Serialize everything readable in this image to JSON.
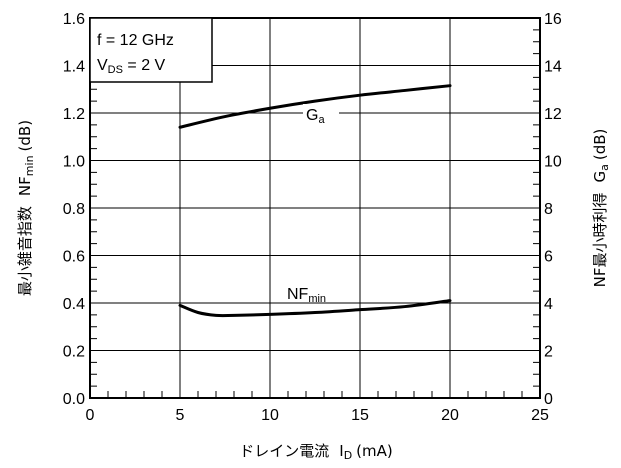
{
  "chart_data": {
    "type": "line",
    "x": {
      "label": "ドレイン電流",
      "symbol": "I",
      "symbol_sub": "D",
      "unit": "(mA)",
      "lim": [
        0,
        25
      ],
      "ticks": [
        "0",
        "5",
        "10",
        "15",
        "20",
        "25"
      ]
    },
    "y_left": {
      "label": "最小雑音指数",
      "symbol": "NF",
      "symbol_sub": "min",
      "unit": "(dB)",
      "lim": [
        0.0,
        1.6
      ],
      "ticks": [
        "0.0",
        "0.2",
        "0.4",
        "0.6",
        "0.8",
        "1.0",
        "1.2",
        "1.4",
        "1.6"
      ]
    },
    "y_right": {
      "label": "NF最小時利得",
      "symbol": "G",
      "symbol_sub": "a",
      "unit": "(dB)",
      "lim": [
        0,
        16
      ],
      "ticks": [
        "0",
        "2",
        "4",
        "6",
        "8",
        "10",
        "12",
        "14",
        "16"
      ]
    },
    "conditions": {
      "freq": "f = 12 GHz",
      "vds_main": "V",
      "vds_sub": "DS",
      "vds_tail": " = 2 V"
    },
    "grid": true,
    "series": [
      {
        "name": "G",
        "name_sub": "a",
        "axis": "right",
        "points": [
          [
            5,
            11.4
          ],
          [
            7.5,
            11.85
          ],
          [
            10,
            12.2
          ],
          [
            12.5,
            12.5
          ],
          [
            15,
            12.75
          ],
          [
            17.5,
            12.95
          ],
          [
            20,
            13.15
          ]
        ]
      },
      {
        "name": "NF",
        "name_sub": "min",
        "axis": "left",
        "points": [
          [
            5,
            0.39
          ],
          [
            6,
            0.36
          ],
          [
            7,
            0.348
          ],
          [
            8,
            0.348
          ],
          [
            10,
            0.352
          ],
          [
            12.5,
            0.36
          ],
          [
            15,
            0.372
          ],
          [
            17.5,
            0.385
          ],
          [
            20,
            0.41
          ]
        ]
      }
    ]
  }
}
